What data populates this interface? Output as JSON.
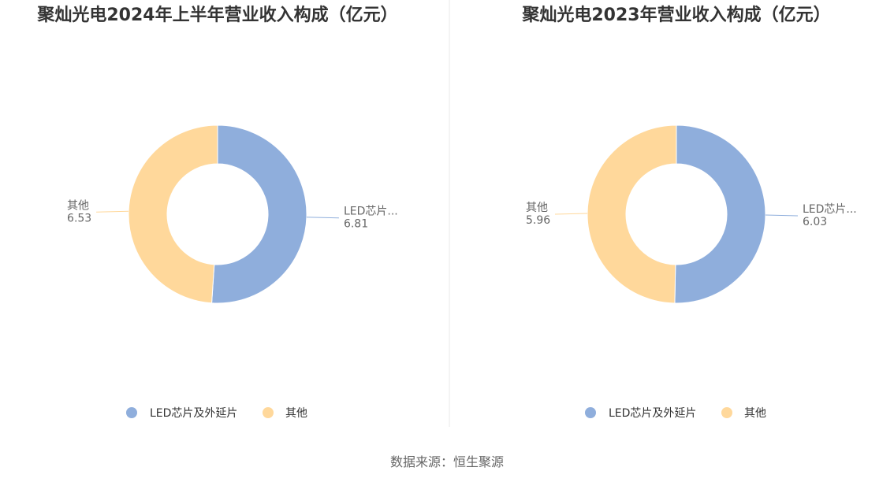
{
  "source": "数据来源：恒生聚源",
  "chart_data": [
    {
      "type": "pie",
      "style": "donut",
      "title": "聚灿光电2024年上半年营业收入构成（亿元）",
      "categories": [
        "LED芯片及外延片",
        "其他"
      ],
      "slice_labels": [
        "LED芯片...",
        "其他"
      ],
      "values": [
        6.81,
        6.53
      ],
      "colors": [
        "#8FAEDC",
        "#FFD89B"
      ],
      "legend": "bottom"
    },
    {
      "type": "pie",
      "style": "donut",
      "title": "聚灿光电2023年营业收入构成（亿元）",
      "categories": [
        "LED芯片及外延片",
        "其他"
      ],
      "slice_labels": [
        "LED芯片...",
        "其他"
      ],
      "values": [
        6.03,
        5.96
      ],
      "colors": [
        "#8FAEDC",
        "#FFD89B"
      ],
      "legend": "bottom"
    }
  ]
}
